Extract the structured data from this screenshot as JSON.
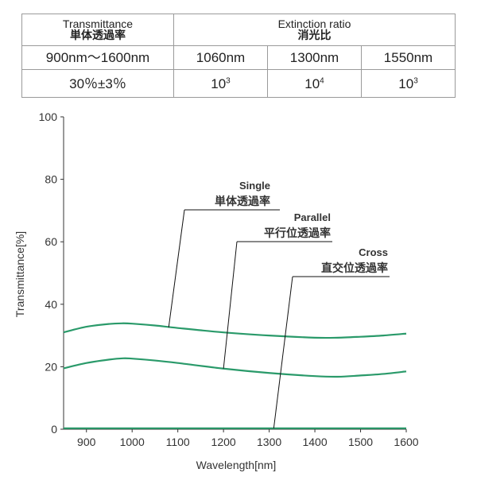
{
  "spec_table": {
    "transmittance_label_en": "Transmittance",
    "transmittance_label_jp": "単体透過率",
    "extinction_label_en": "Extinction ratio",
    "extinction_label_jp": "消光比",
    "range": "900nm～1600nm",
    "wl1": "1060nm",
    "wl2": "1300nm",
    "wl3": "1550nm",
    "transmittance_value": "30％±3％",
    "ratio1_base": "10",
    "ratio1_exp": "3",
    "ratio2_base": "10",
    "ratio2_exp": "4",
    "ratio3_base": "10",
    "ratio3_exp": "3"
  },
  "chart_data": {
    "type": "line",
    "title": "",
    "xlabel": "Wavelength[nm]",
    "ylabel": "Transmittance[%]",
    "xlim": [
      850,
      1600
    ],
    "ylim": [
      0,
      100
    ],
    "xticks": [
      900,
      1000,
      1100,
      1200,
      1300,
      1400,
      1500,
      1600
    ],
    "yticks": [
      0,
      20,
      40,
      60,
      80,
      100
    ],
    "grid": false,
    "line_color": "#2a9a6a",
    "series": [
      {
        "name": "Single",
        "name_jp": "単体透過率",
        "x": [
          850,
          900,
          950,
          980,
          1000,
          1050,
          1100,
          1200,
          1300,
          1400,
          1450,
          1500,
          1550,
          1600
        ],
        "y": [
          31.0,
          32.8,
          33.7,
          33.9,
          33.8,
          33.2,
          32.4,
          31.0,
          30.0,
          29.3,
          29.3,
          29.6,
          30.0,
          30.6
        ]
      },
      {
        "name": "Parallel",
        "name_jp": "平行位透過率",
        "x": [
          850,
          900,
          950,
          980,
          1000,
          1050,
          1100,
          1200,
          1300,
          1400,
          1450,
          1500,
          1550,
          1600
        ],
        "y": [
          19.5,
          21.2,
          22.3,
          22.7,
          22.6,
          22.0,
          21.2,
          19.4,
          18.0,
          17.0,
          16.8,
          17.2,
          17.7,
          18.5
        ]
      },
      {
        "name": "Cross",
        "name_jp": "直交位透過率",
        "x": [
          850,
          900,
          1000,
          1100,
          1200,
          1300,
          1400,
          1500,
          1600
        ],
        "y": [
          0.3,
          0.3,
          0.3,
          0.3,
          0.3,
          0.3,
          0.3,
          0.3,
          0.3
        ]
      }
    ],
    "annotations": [
      {
        "series": "Single",
        "text_en": "Single",
        "text_jp": "単体透過率",
        "point": [
          1080,
          32.6
        ]
      },
      {
        "series": "Parallel",
        "text_en": "Parallel",
        "text_jp": "平行位透過率",
        "point": [
          1200,
          19.4
        ]
      },
      {
        "series": "Cross",
        "text_en": "Cross",
        "text_jp": "直交位透過率",
        "point": [
          1310,
          0.3
        ]
      }
    ]
  }
}
